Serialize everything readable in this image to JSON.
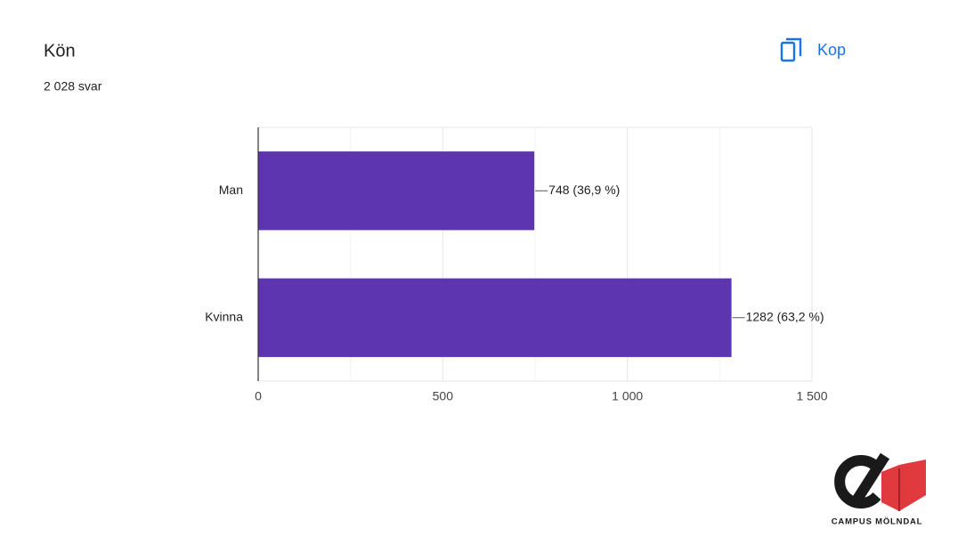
{
  "chart_data": {
    "type": "hbar",
    "title": "Kön",
    "subtitle": "2 028 svar",
    "categories": [
      "Man",
      "Kvinna"
    ],
    "values": [
      748,
      1282
    ],
    "value_labels": [
      "748 (36,9 %)",
      "1282 (63,2 %)"
    ],
    "color": "#5e35b1",
    "xlim": [
      0,
      1500
    ],
    "xticks": [
      0,
      500,
      {
        "value": 1000,
        "label": "1 000"
      },
      {
        "value": 1500,
        "label": "1 500"
      }
    ],
    "minor_xticks": [
      250,
      750,
      1250
    ],
    "grid": true
  },
  "copy_button": "Kop",
  "logo_text": "CAMPUS MÖLNDAL"
}
